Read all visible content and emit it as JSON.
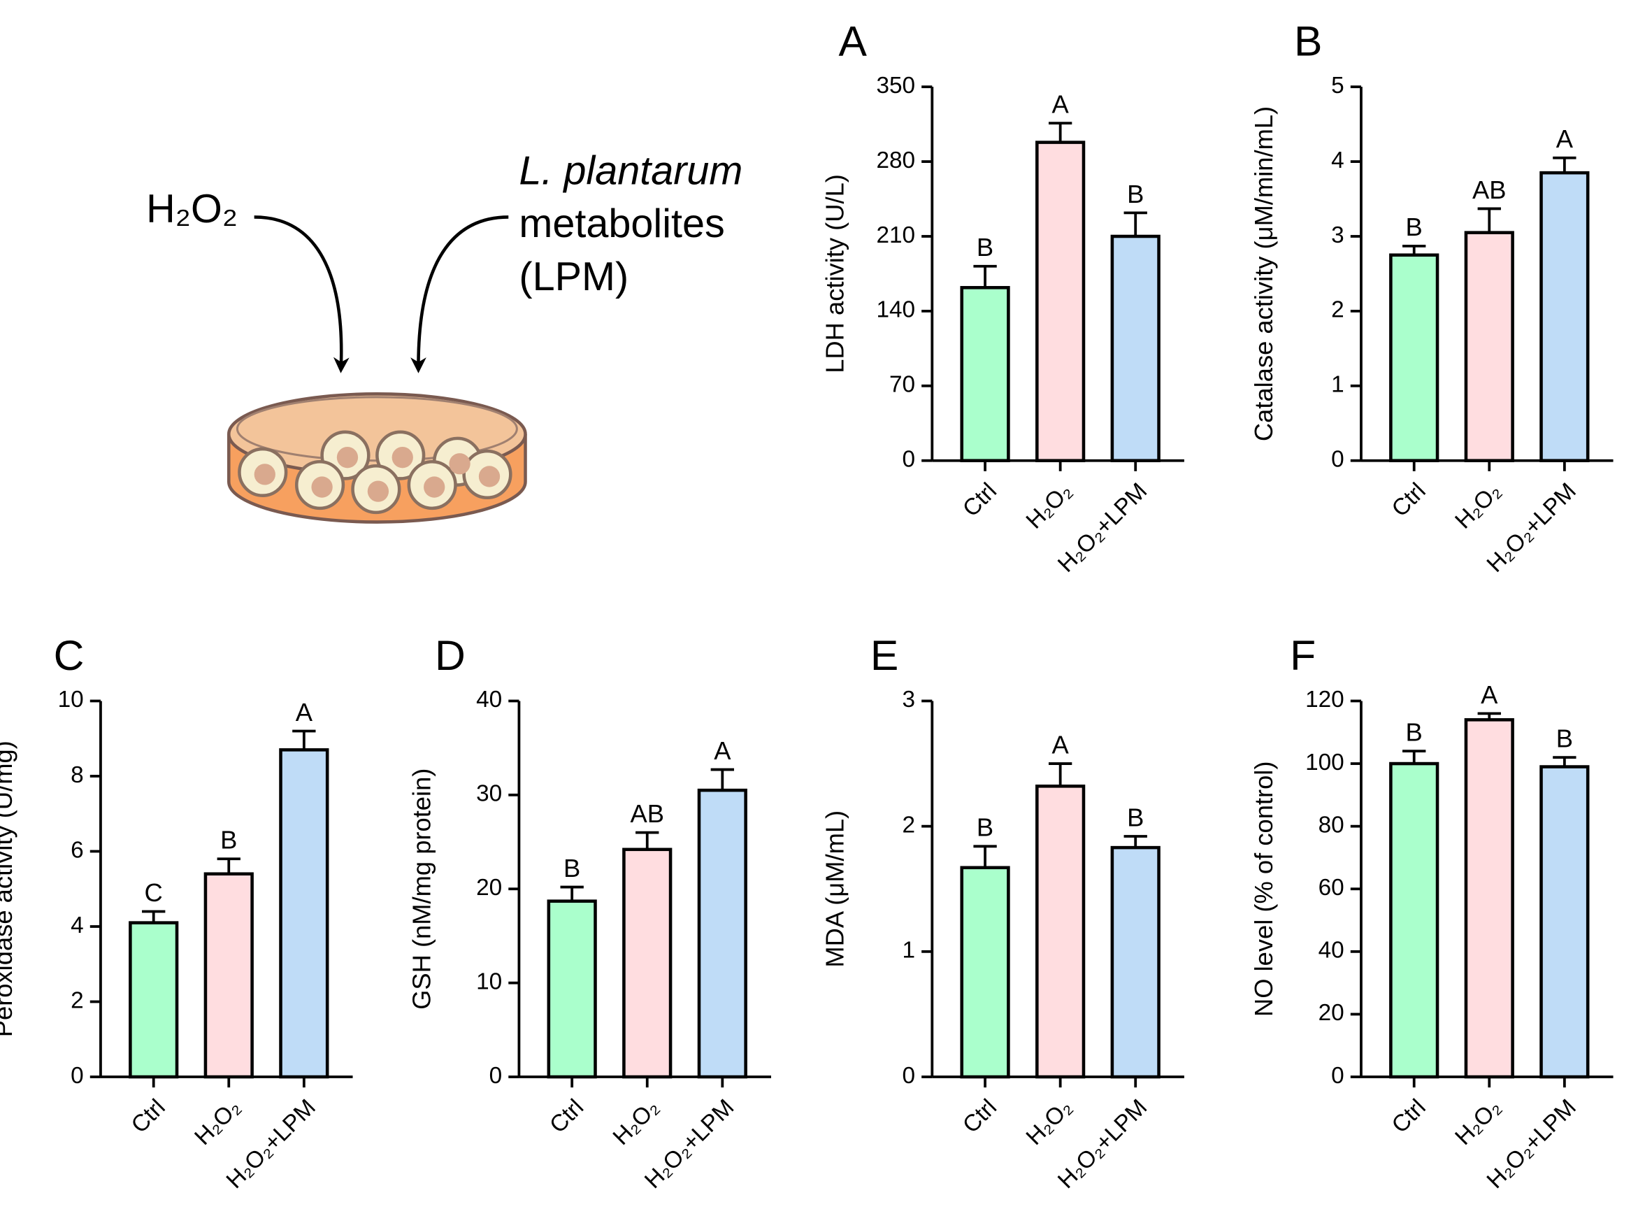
{
  "illustration": {
    "labels": [
      "H₂O₂",
      "L. plantarum",
      "metabolites",
      "(LPM)"
    ]
  },
  "chart_data": [
    {
      "type": "bar",
      "panel": "A",
      "ylabel": "LDH activity (U/L)",
      "categories": [
        "Ctrl",
        "H₂O₂",
        "H₂O₂+LPM"
      ],
      "values": [
        162,
        298,
        210
      ],
      "errors": [
        20,
        18,
        22
      ],
      "annotations": [
        "B",
        "A",
        "B"
      ],
      "colors": [
        "#aaffcc",
        "#ffdde0",
        "#bfdcf7"
      ],
      "ylim": [
        0,
        350
      ],
      "yticks": [
        0,
        70,
        140,
        210,
        280,
        350
      ]
    },
    {
      "type": "bar",
      "panel": "B",
      "ylabel": "Catalase activity (μM/min/mL)",
      "categories": [
        "Ctrl",
        "H₂O₂",
        "H₂O₂+LPM"
      ],
      "values": [
        2.75,
        3.05,
        3.85
      ],
      "errors": [
        0.12,
        0.32,
        0.2
      ],
      "annotations": [
        "B",
        "AB",
        "A"
      ],
      "colors": [
        "#aaffcc",
        "#ffdde0",
        "#bfdcf7"
      ],
      "ylim": [
        0,
        5
      ],
      "yticks": [
        0,
        1,
        2,
        3,
        4,
        5
      ]
    },
    {
      "type": "bar",
      "panel": "C",
      "ylabel": "Peroxidase activity (U/mg)",
      "categories": [
        "Ctrl",
        "H₂O₂",
        "H₂O₂+LPM"
      ],
      "values": [
        4.1,
        5.4,
        8.7
      ],
      "errors": [
        0.3,
        0.4,
        0.5
      ],
      "annotations": [
        "C",
        "B",
        "A"
      ],
      "colors": [
        "#aaffcc",
        "#ffdde0",
        "#bfdcf7"
      ],
      "ylim": [
        0,
        10
      ],
      "yticks": [
        0,
        2,
        4,
        6,
        8,
        10
      ]
    },
    {
      "type": "bar",
      "panel": "D",
      "ylabel": "GSH (nM/mg protein)",
      "categories": [
        "Ctrl",
        "H₂O₂",
        "H₂O₂+LPM"
      ],
      "values": [
        18.7,
        24.2,
        30.5
      ],
      "errors": [
        1.5,
        1.8,
        2.2
      ],
      "annotations": [
        "B",
        "AB",
        "A"
      ],
      "colors": [
        "#aaffcc",
        "#ffdde0",
        "#bfdcf7"
      ],
      "ylim": [
        0,
        40
      ],
      "yticks": [
        0,
        10,
        20,
        30,
        40
      ]
    },
    {
      "type": "bar",
      "panel": "E",
      "ylabel": "MDA (μM/mL)",
      "categories": [
        "Ctrl",
        "H₂O₂",
        "H₂O₂+LPM"
      ],
      "values": [
        1.67,
        2.32,
        1.83
      ],
      "errors": [
        0.17,
        0.18,
        0.09
      ],
      "annotations": [
        "B",
        "A",
        "B"
      ],
      "colors": [
        "#aaffcc",
        "#ffdde0",
        "#bfdcf7"
      ],
      "ylim": [
        0,
        3
      ],
      "yticks": [
        0,
        1,
        2,
        3
      ]
    },
    {
      "type": "bar",
      "panel": "F",
      "ylabel": "NO level (% of control)",
      "categories": [
        "Ctrl",
        "H₂O₂",
        "H₂O₂+LPM"
      ],
      "values": [
        100,
        114,
        99
      ],
      "errors": [
        4,
        2,
        3
      ],
      "annotations": [
        "B",
        "A",
        "B"
      ],
      "colors": [
        "#aaffcc",
        "#ffdde0",
        "#bfdcf7"
      ],
      "ylim": [
        0,
        120
      ],
      "yticks": [
        0,
        20,
        40,
        60,
        80,
        100,
        120
      ]
    }
  ]
}
